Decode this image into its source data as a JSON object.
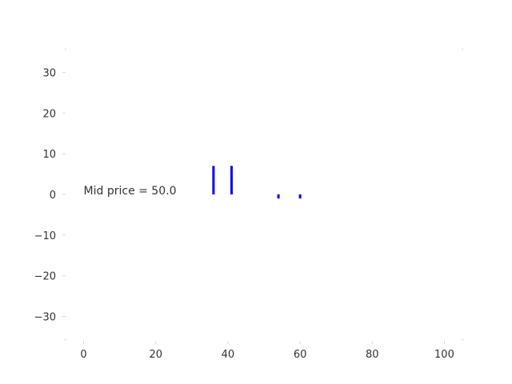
{
  "chart_data": {
    "type": "bar",
    "title": "",
    "xlabel": "",
    "ylabel": "",
    "xlim": [
      -5,
      105
    ],
    "ylim": [
      -36,
      36
    ],
    "xticks": [
      0,
      20,
      40,
      60,
      80,
      100
    ],
    "yticks": [
      -30,
      -20,
      -10,
      0,
      10,
      20,
      30
    ],
    "grid": false,
    "bar_color": "#0000ff",
    "bars": [
      {
        "x": 36,
        "value": 7
      },
      {
        "x": 41,
        "value": 7
      },
      {
        "x": 54,
        "value": -1
      },
      {
        "x": 60,
        "value": -1
      }
    ],
    "annotation": {
      "text": "Mid price = 50.0",
      "x": 0,
      "y": 0
    }
  }
}
